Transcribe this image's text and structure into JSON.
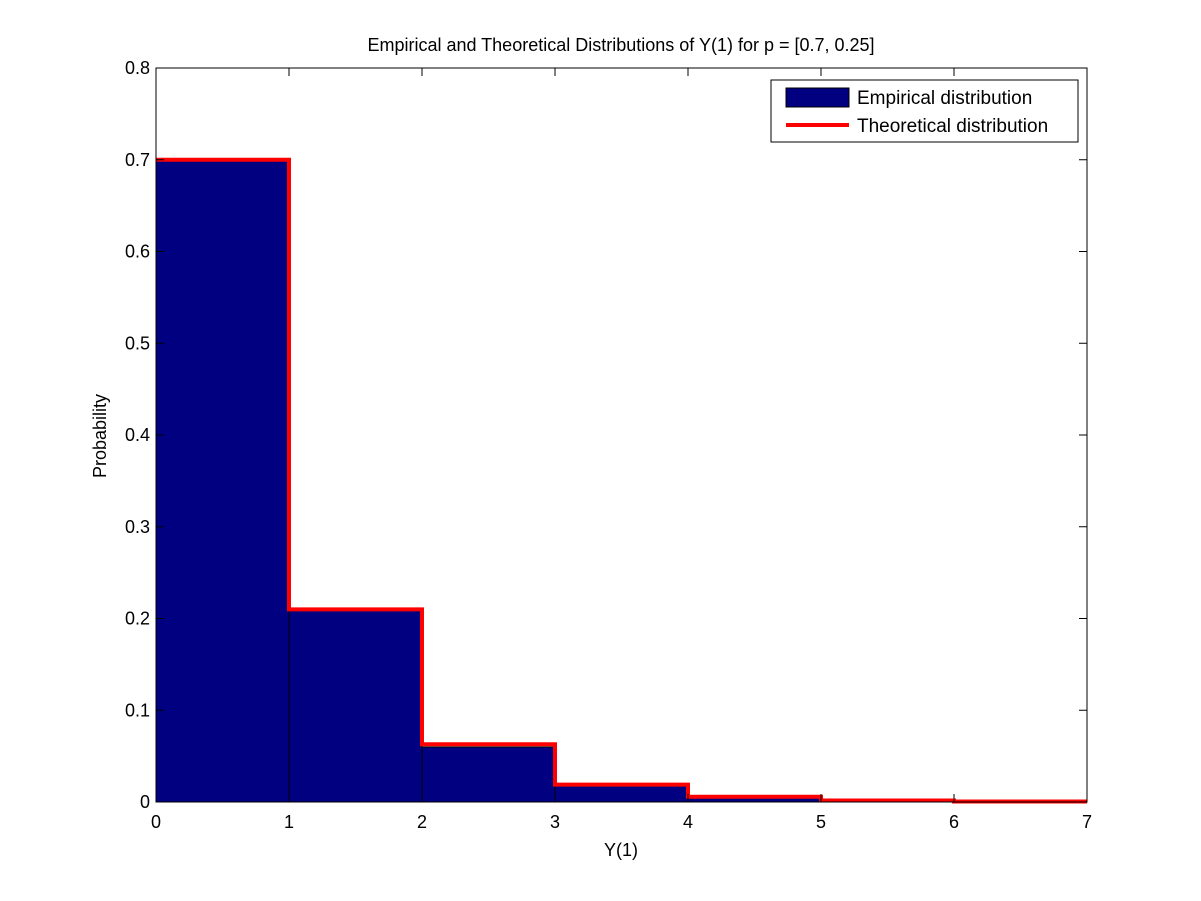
{
  "chart_data": {
    "type": "bar",
    "title": "Empirical and Theoretical Distributions of Y(1) for p = [0.7, 0.25]",
    "xlabel": "Y(1)",
    "ylabel": "Probability",
    "xlim": [
      0,
      7
    ],
    "ylim": [
      0,
      0.8
    ],
    "xticks": [
      "0",
      "1",
      "2",
      "3",
      "4",
      "5",
      "6",
      "7"
    ],
    "yticks": [
      "0",
      "0.1",
      "0.2",
      "0.3",
      "0.4",
      "0.5",
      "0.6",
      "0.7",
      "0.8"
    ],
    "grid": false,
    "legend_position": "top-right",
    "bins": [
      [
        0,
        1
      ],
      [
        1,
        2
      ],
      [
        2,
        3
      ],
      [
        3,
        4
      ],
      [
        4,
        5
      ],
      [
        5,
        6
      ],
      [
        6,
        7
      ]
    ],
    "series": [
      {
        "name": "Empirical distribution",
        "kind": "bar",
        "color": "#000080",
        "values": [
          0.7,
          0.21,
          0.06,
          0.018,
          0.005,
          0.002,
          0.001
        ]
      },
      {
        "name": "Theoretical distribution",
        "kind": "step",
        "color": "#ff0000",
        "values": [
          0.7,
          0.21,
          0.063,
          0.0189,
          0.0057,
          0.0017,
          0.0005
        ]
      }
    ]
  }
}
